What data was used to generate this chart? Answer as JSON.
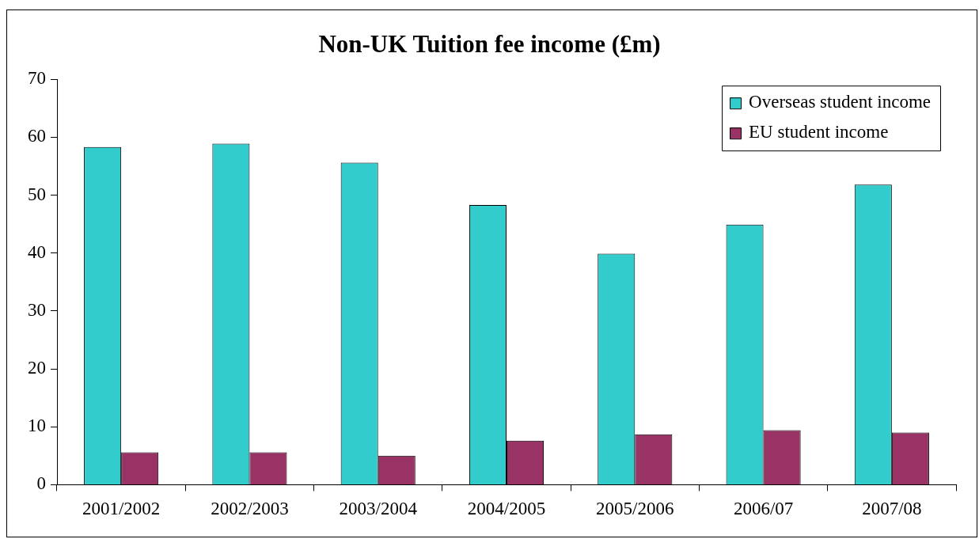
{
  "chart_data": {
    "type": "bar",
    "title": "Non-UK Tuition fee income (£m)",
    "categories": [
      "2001/2002",
      "2002/2003",
      "2003/2004",
      "2004/2005",
      "2005/2006",
      "2006/07",
      "2007/08"
    ],
    "series": [
      {
        "name": "Overseas student income",
        "color": "#33cccc",
        "values": [
          58.3,
          58.9,
          55.6,
          48.3,
          39.9,
          44.9,
          51.8
        ]
      },
      {
        "name": "EU student income",
        "color": "#993366",
        "values": [
          5.6,
          5.6,
          5.0,
          7.6,
          8.7,
          9.4,
          9.0
        ]
      }
    ],
    "ylim": [
      0,
      70
    ],
    "yticks": [
      0,
      10,
      20,
      30,
      40,
      50,
      60,
      70
    ],
    "grid": false,
    "legend": "top right"
  }
}
